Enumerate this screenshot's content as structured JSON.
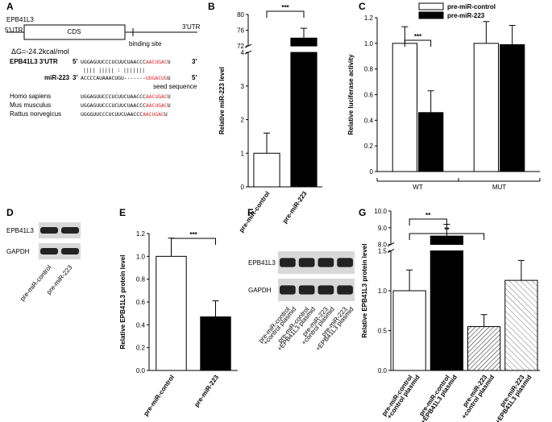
{
  "panels": [
    "A",
    "B",
    "C",
    "D",
    "E",
    "F",
    "G"
  ],
  "diagram": {
    "gene": "EPB41L3",
    "utr5": "5'UTR",
    "cds": "CDS",
    "utr3": "3'UTR",
    "binding_site": "binding site",
    "dg": "ΔG=-24.2kcal/mol",
    "target_label": "EPB41L3 3'UTR",
    "end5": "5'",
    "end3": "3'",
    "target_seq": [
      "UGGAGUUCCCUCUUCUAACCC",
      "AACUGAC",
      "U"
    ],
    "pairing": "||||  |||||      :   |||||||",
    "mirna_label": "miR-223",
    "mirna_seq": [
      "ACCCCAUAAACUGU-------",
      "UUGACUG",
      "U"
    ],
    "seed": "seed sequence",
    "species": [
      {
        "name": "Homo sapiens",
        "seq": [
          "UGGAGUUCCCUCUUCUAACCC",
          "AACUGAC",
          "U"
        ]
      },
      {
        "name": "Mus musculus",
        "seq": [
          "UGGAGUUCCCUCUUCUAACCC",
          "AACUGAC",
          "U"
        ]
      },
      {
        "name": "Rattus norvegicus",
        "seq": [
          "UGGGUUCCCUCUUCUAACCC",
          "AACUGAC",
          "U"
        ]
      }
    ]
  },
  "blots": [
    {
      "rows": [
        "EPB41L3",
        "GAPDH"
      ],
      "lanes": [
        [
          "pre-miR-control"
        ],
        [
          "pre-miR-223"
        ]
      ]
    },
    {
      "rows": [
        "EPB41L3",
        "GAPDH"
      ],
      "lanes": [
        [
          "pre-miR-control",
          "+control plasmid"
        ],
        [
          "pre-miR-control",
          "+EPB41L3 plasmid"
        ],
        [
          "pre-miR-223",
          "+control plasmid"
        ],
        [
          "pre-miR-223",
          "+EPB41L3 plasmid"
        ]
      ]
    }
  ],
  "chart_data": [
    {
      "type": "bar",
      "ylabel": "Relative miR-223 level",
      "categories": [
        [
          "pre-miR-control"
        ],
        [
          "pre-miR-223"
        ]
      ],
      "values": [
        1,
        74
      ],
      "errors": [
        0.6,
        2.5
      ],
      "fills": [
        "#ffffff",
        "#000000"
      ],
      "ylim": [
        0,
        80
      ],
      "axis_break": [
        4,
        72
      ],
      "yticks": [
        0,
        1,
        2,
        3,
        4,
        72,
        76,
        80
      ],
      "annotations": [
        {
          "text": "***",
          "between": [
            0,
            1
          ]
        }
      ]
    },
    {
      "type": "grouped-bar",
      "ylabel": "Relative luciferase activity",
      "categories": [
        "WT",
        "MUT"
      ],
      "series": [
        {
          "name": "pre-miR-control",
          "color": "#ffffff",
          "values": [
            1.0,
            1.0
          ],
          "errors": [
            0.13,
            0.17
          ]
        },
        {
          "name": "pre-miR-223",
          "color": "#000000",
          "values": [
            0.46,
            0.99
          ],
          "errors": [
            0.17,
            0.15
          ]
        }
      ],
      "ylim": [
        0,
        1.2
      ],
      "yticks": [
        0,
        0.2,
        0.4,
        0.6,
        0.8,
        {
          "value": 1,
          "label": "1.0"
        },
        1.2
      ],
      "annotations": [
        {
          "text": "***",
          "between": [
            0,
            1
          ]
        }
      ]
    },
    {
      "type": "bar",
      "ylabel": "Relative EPB41L3 protein level",
      "categories": [
        [
          "pre-miR-control"
        ],
        [
          "pre-miR-223"
        ]
      ],
      "values": [
        1.0,
        0.47
      ],
      "errors": [
        0.16,
        0.14
      ],
      "fills": [
        "#ffffff",
        "#000000"
      ],
      "ylim": [
        0,
        1.2
      ],
      "yticks": [
        {
          "value": 0,
          "label": "0.0"
        },
        0.2,
        0.4,
        0.6,
        0.8,
        {
          "value": 1,
          "label": "1.0"
        },
        1.2
      ],
      "annotations": [
        {
          "text": "***",
          "between": [
            0,
            1
          ]
        }
      ]
    },
    {
      "type": "bar",
      "ylabel": "Relative EPB41L3 protein level",
      "categories": [
        [
          "pre-miR-control",
          "+control plasmid"
        ],
        [
          "pre-miR-control",
          "+EPB41L3 plasmid"
        ],
        [
          "pre-miR-223",
          "+control plasmid"
        ],
        [
          "pre-miR-223",
          "+EPB41L3 plasmid"
        ]
      ],
      "values": [
        1.0,
        8.5,
        0.55,
        1.13
      ],
      "errors": [
        0.26,
        0.7,
        0.15,
        0.25
      ],
      "fills": [
        "#ffffff",
        "#000000",
        "hatch",
        "crosshatch"
      ],
      "ylim": [
        0,
        10
      ],
      "axis_break": [
        1.5,
        8
      ],
      "yticks": [
        {
          "value": 0,
          "label": "0.0"
        },
        0.5,
        {
          "value": 1,
          "label": "1.0"
        },
        1.5,
        {
          "value": 8,
          "label": "8.0"
        },
        {
          "value": 9,
          "label": "9.0"
        },
        {
          "value": 10,
          "label": "10.0"
        }
      ],
      "annotations": [
        {
          "text": "**",
          "between": [
            0,
            1
          ]
        },
        {
          "text": "**",
          "between": [
            0,
            2
          ]
        }
      ]
    }
  ]
}
